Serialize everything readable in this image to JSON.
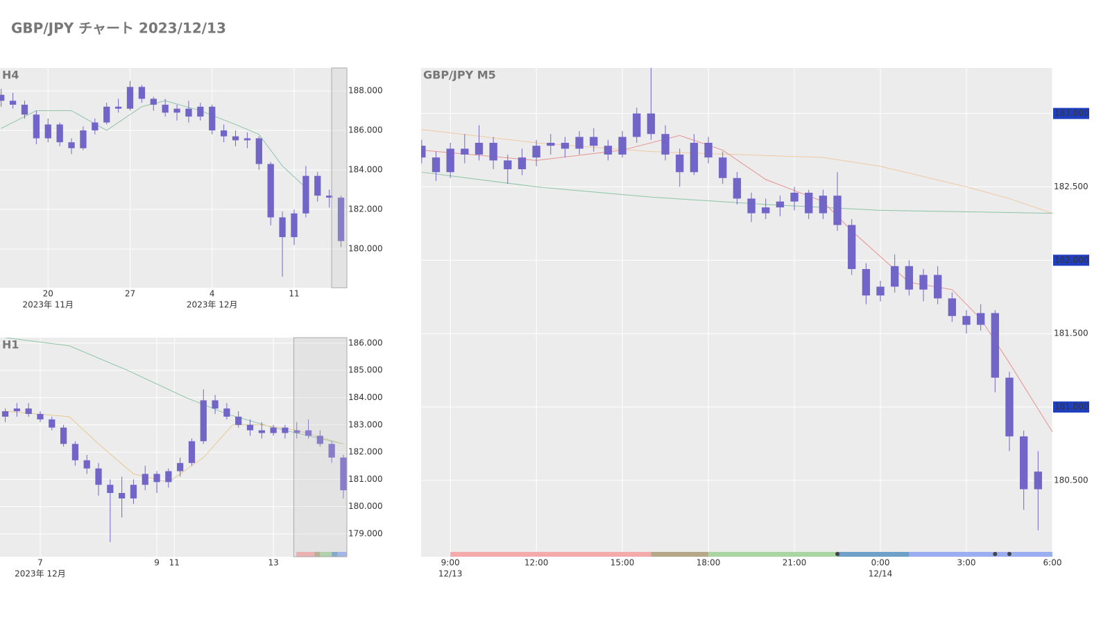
{
  "title": "GBP/JPY チャート 2023/12/13",
  "chart_data": [
    {
      "type": "candlestick",
      "title": "H4",
      "color": "#7265c8",
      "x": [
        16,
        17,
        18,
        19,
        20,
        21,
        22,
        23,
        24,
        25,
        26,
        27,
        28,
        29,
        30,
        31,
        32,
        33,
        34,
        35,
        36,
        37,
        38,
        39,
        40,
        41,
        42,
        43,
        44,
        45
      ],
      "open": [
        187.8,
        187.5,
        187.3,
        186.8,
        185.6,
        186.3,
        185.4,
        185.1,
        186.0,
        186.4,
        187.2,
        187.1,
        188.2,
        187.6,
        187.3,
        186.9,
        187.1,
        186.7,
        187.2,
        186.0,
        185.7,
        185.5,
        185.6,
        184.3,
        181.6,
        180.6,
        181.8,
        183.7,
        182.7,
        182.6
      ],
      "high": [
        188.1,
        187.9,
        187.5,
        187.0,
        186.6,
        186.4,
        185.6,
        186.2,
        186.6,
        187.4,
        187.6,
        188.5,
        188.3,
        187.7,
        187.6,
        187.3,
        187.5,
        187.4,
        187.3,
        186.3,
        186.0,
        185.9,
        185.7,
        184.4,
        181.9,
        182.0,
        184.2,
        183.9,
        183.0,
        182.7
      ],
      "low": [
        187.2,
        187.1,
        186.6,
        185.3,
        185.4,
        185.2,
        184.8,
        185.0,
        185.8,
        186.3,
        186.9,
        187.0,
        187.4,
        187.0,
        186.7,
        186.5,
        186.4,
        186.5,
        185.8,
        185.4,
        185.2,
        185.1,
        184.0,
        181.2,
        178.6,
        180.2,
        181.6,
        182.4,
        182.1,
        180.1
      ],
      "close": [
        187.5,
        187.3,
        186.8,
        185.6,
        186.3,
        185.4,
        185.1,
        186.0,
        186.4,
        187.2,
        187.1,
        188.2,
        187.6,
        187.3,
        186.9,
        187.1,
        186.7,
        187.2,
        186.0,
        185.7,
        185.5,
        185.6,
        184.3,
        181.6,
        180.6,
        181.8,
        183.7,
        182.7,
        182.6,
        180.4
      ],
      "ma": [
        {
          "color": "#8cc4a8",
          "x": [
            16,
            19,
            22,
            25,
            28,
            30,
            33,
            36,
            38,
            40,
            42
          ],
          "values": [
            186.1,
            187.0,
            187.0,
            186.0,
            187.2,
            187.5,
            187.0,
            186.3,
            185.8,
            184.2,
            183.1
          ]
        }
      ],
      "xlim": [
        15.9,
        45.5
      ],
      "ylim": [
        178.04,
        189.16
      ],
      "xticks": [
        20,
        27,
        {
          "value": 34,
          "label": "4"
        },
        {
          "value": 41,
          "label": "11"
        }
      ],
      "xticks2": [
        {
          "value": 20,
          "label": "2023年 11月"
        },
        {
          "value": 34,
          "label": "2023年 12月"
        }
      ],
      "yticks": [
        {
          "value": 180,
          "label": "180.000"
        },
        {
          "value": 182,
          "label": "182.000"
        },
        {
          "value": 184,
          "label": "184.000"
        },
        {
          "value": 186,
          "label": "186.000"
        },
        {
          "value": 188,
          "label": "188.000"
        }
      ],
      "highlight_range": [
        44.2,
        45.5
      ],
      "grid": true
    },
    {
      "type": "candlestick",
      "title": "H1",
      "color": "#7265c8",
      "x": [
        -0.6,
        -0.4,
        -0.2,
        0,
        0.2,
        0.4,
        0.6,
        0.8,
        1.0,
        1.2,
        1.4,
        1.6,
        1.8,
        2.0,
        2.2,
        2.4,
        2.6,
        2.8,
        3.0,
        3.2,
        3.4,
        3.6,
        3.8,
        4.0,
        4.2,
        4.4,
        4.6,
        4.8,
        5.0,
        5.2
      ],
      "open": [
        183.3,
        183.5,
        183.6,
        183.4,
        183.2,
        182.9,
        182.3,
        181.7,
        181.4,
        180.8,
        180.5,
        180.3,
        180.8,
        181.2,
        180.9,
        181.3,
        181.6,
        182.4,
        183.9,
        183.6,
        183.3,
        183.0,
        182.8,
        182.7,
        182.9,
        182.7,
        182.8,
        182.6,
        182.3,
        181.8
      ],
      "high": [
        183.6,
        183.8,
        183.8,
        183.5,
        183.3,
        183.0,
        182.4,
        181.9,
        181.6,
        181.0,
        181.1,
        181.0,
        181.5,
        181.3,
        181.4,
        181.8,
        182.5,
        184.3,
        184.1,
        183.8,
        183.5,
        183.2,
        183.1,
        183.0,
        183.0,
        183.1,
        183.2,
        182.8,
        182.4,
        181.9
      ],
      "low": [
        183.1,
        183.3,
        183.3,
        183.1,
        182.8,
        182.2,
        181.5,
        181.2,
        180.4,
        178.7,
        179.6,
        180.1,
        180.6,
        180.5,
        180.7,
        181.1,
        181.5,
        182.3,
        183.4,
        183.2,
        182.9,
        182.6,
        182.5,
        182.6,
        182.5,
        182.5,
        182.5,
        182.2,
        181.6,
        180.3
      ],
      "close": [
        183.5,
        183.6,
        183.4,
        183.2,
        182.9,
        182.3,
        181.7,
        181.4,
        180.8,
        180.5,
        180.3,
        180.8,
        181.2,
        180.9,
        181.3,
        181.6,
        182.4,
        183.9,
        183.6,
        183.3,
        183.0,
        182.8,
        182.7,
        182.9,
        182.7,
        182.8,
        182.6,
        182.3,
        181.8,
        180.6
      ],
      "ma": [
        {
          "color": "#8cc4a8",
          "x": [
            -0.6,
            0.5,
            1.5,
            2.5,
            3.2,
            4.0,
            5.2
          ],
          "values": [
            186.2,
            185.9,
            185.0,
            184.0,
            183.4,
            182.9,
            182.3
          ]
        },
        {
          "color": "#e8c890",
          "x": [
            -0.6,
            0.5,
            1.0,
            1.6,
            2.2,
            2.8,
            3.3,
            3.8,
            4.4,
            5.2
          ],
          "values": [
            183.5,
            183.3,
            182.3,
            181.2,
            180.9,
            181.8,
            183.0,
            183.0,
            182.8,
            182.3
          ]
        }
      ],
      "xlim": [
        -0.69,
        5.26
      ],
      "ylim": [
        178.16,
        186.2
      ],
      "xticks": [
        {
          "value": 0,
          "label": "7"
        },
        {
          "value": 2,
          "label": "9"
        },
        {
          "value": 2.3,
          "label": "11"
        },
        {
          "value": 4,
          "label": "13"
        }
      ],
      "xticks2": [
        {
          "value": 0,
          "label": "2023年 12月"
        }
      ],
      "yticks": [
        {
          "value": 179,
          "label": "179.000"
        },
        {
          "value": 180,
          "label": "180.000"
        },
        {
          "value": 181,
          "label": "181.000"
        },
        {
          "value": 182,
          "label": "182.000"
        },
        {
          "value": 183,
          "label": "183.000"
        },
        {
          "value": 184,
          "label": "184.000"
        },
        {
          "value": 185,
          "label": "185.000"
        },
        {
          "value": 186,
          "label": "186.000"
        }
      ],
      "highlight_range": [
        4.35,
        5.26
      ],
      "sessions": [
        {
          "start": 4.39,
          "end": 4.7,
          "color": "#f4aaaa"
        },
        {
          "start": 4.7,
          "end": 4.8,
          "color": "#b5a98a"
        },
        {
          "start": 4.8,
          "end": 5.0,
          "color": "#a8d5a2"
        },
        {
          "start": 5.0,
          "end": 5.1,
          "color": "#6fa0c8"
        },
        {
          "start": 5.1,
          "end": 5.26,
          "color": "#9aaef0"
        }
      ],
      "grid": true
    },
    {
      "type": "candlestick",
      "title": "GBP/JPY M5",
      "color": "#7265c8",
      "x": [
        8.0,
        8.5,
        9.0,
        9.5,
        10.0,
        10.5,
        11.0,
        11.5,
        12.0,
        12.5,
        13.0,
        13.5,
        14.0,
        14.5,
        15.0,
        15.5,
        16.0,
        16.5,
        17.0,
        17.5,
        18.0,
        18.5,
        19.0,
        19.5,
        20.0,
        20.5,
        21.0,
        21.5,
        22.0,
        22.5,
        23.0,
        23.5,
        24.0,
        24.5,
        25.0,
        25.5,
        26.0,
        26.5,
        27.0,
        27.5,
        28.0,
        28.5,
        29.0,
        29.5
      ],
      "open": [
        182.78,
        182.7,
        182.6,
        182.76,
        182.72,
        182.8,
        182.68,
        182.62,
        182.7,
        182.78,
        182.8,
        182.76,
        182.84,
        182.78,
        182.72,
        182.84,
        183.0,
        182.86,
        182.72,
        182.6,
        182.8,
        182.7,
        182.56,
        182.42,
        182.32,
        182.36,
        182.4,
        182.46,
        182.32,
        182.44,
        182.24,
        181.94,
        181.76,
        181.82,
        181.96,
        181.8,
        181.9,
        181.74,
        181.62,
        181.56,
        181.64,
        181.2,
        180.8,
        180.44
      ],
      "high": [
        182.82,
        182.74,
        182.8,
        182.86,
        182.92,
        182.84,
        182.72,
        182.76,
        182.82,
        182.86,
        182.84,
        182.88,
        182.9,
        182.82,
        182.88,
        183.04,
        183.32,
        182.92,
        182.76,
        182.86,
        182.84,
        182.74,
        182.6,
        182.46,
        182.42,
        182.44,
        182.5,
        182.48,
        182.48,
        182.6,
        182.28,
        181.98,
        181.86,
        182.04,
        182.0,
        181.94,
        181.96,
        181.78,
        181.66,
        181.7,
        181.66,
        181.24,
        180.84,
        180.7
      ],
      "low": [
        182.66,
        182.54,
        182.56,
        182.66,
        182.68,
        182.62,
        182.52,
        182.58,
        182.64,
        182.72,
        182.7,
        182.72,
        182.74,
        182.68,
        182.7,
        182.8,
        182.82,
        182.68,
        182.5,
        182.58,
        182.66,
        182.52,
        182.38,
        182.26,
        182.28,
        182.3,
        182.34,
        182.28,
        182.28,
        182.2,
        181.9,
        181.7,
        181.72,
        181.78,
        181.76,
        181.72,
        181.7,
        181.58,
        181.5,
        181.52,
        181.1,
        180.7,
        180.3,
        180.16
      ],
      "close": [
        182.7,
        182.6,
        182.76,
        182.72,
        182.8,
        182.68,
        182.62,
        182.7,
        182.78,
        182.8,
        182.76,
        182.84,
        182.78,
        182.72,
        182.84,
        183.0,
        182.86,
        182.72,
        182.6,
        182.8,
        182.7,
        182.56,
        182.42,
        182.32,
        182.36,
        182.4,
        182.46,
        182.32,
        182.44,
        182.24,
        181.94,
        181.76,
        181.82,
        181.96,
        181.8,
        181.9,
        181.74,
        181.62,
        181.56,
        181.64,
        181.2,
        180.8,
        180.44,
        180.56
      ],
      "ma": [
        {
          "color": "#f0c8a0",
          "x": [
            8,
            12,
            16,
            19,
            22,
            24,
            27,
            28.5,
            30
          ],
          "values": [
            182.89,
            182.8,
            182.74,
            182.72,
            182.7,
            182.64,
            182.5,
            182.42,
            182.32
          ]
        },
        {
          "color": "#8cc4a8",
          "x": [
            8,
            12,
            16,
            20,
            24,
            30
          ],
          "values": [
            182.6,
            182.5,
            182.43,
            182.38,
            182.34,
            182.32
          ]
        },
        {
          "color": "#e89090",
          "x": [
            8,
            12,
            15,
            17,
            18.5,
            20,
            22,
            23,
            25,
            26.5,
            27.5,
            28.5,
            30
          ],
          "values": [
            182.75,
            182.68,
            182.75,
            182.85,
            182.75,
            182.55,
            182.4,
            182.2,
            181.85,
            181.8,
            181.6,
            181.3,
            180.83
          ]
        }
      ],
      "xlim": [
        7.98,
        30
      ],
      "ylim": [
        179.98,
        183.31
      ],
      "xticks": [
        {
          "value": 9,
          "label": "9:00"
        },
        {
          "value": 12,
          "label": "12:00"
        },
        {
          "value": 15,
          "label": "15:00"
        },
        {
          "value": 18,
          "label": "18:00"
        },
        {
          "value": 21,
          "label": "21:00"
        },
        {
          "value": 24,
          "label": "0:00"
        },
        {
          "value": 27,
          "label": "3:00"
        },
        {
          "value": 30,
          "label": "6:00"
        }
      ],
      "xticks2": [
        {
          "value": 9,
          "label": "12/13"
        },
        {
          "value": 24,
          "label": "12/14"
        }
      ],
      "yticks": [
        {
          "value": 180.5,
          "label": "180.500"
        },
        {
          "value": 181.5,
          "label": "181.500"
        },
        {
          "value": 182.5,
          "label": "182.500"
        }
      ],
      "yticks_major": [
        {
          "value": 181,
          "label": "181.000"
        },
        {
          "value": 182,
          "label": "182.000"
        },
        {
          "value": 183,
          "label": "183.000"
        }
      ],
      "major_color": "#1f3fbf",
      "sessions": [
        {
          "start": 9.0,
          "end": 16.0,
          "color": "#f4aaaa"
        },
        {
          "start": 16.0,
          "end": 18.0,
          "color": "#b5a98a"
        },
        {
          "start": 18.0,
          "end": 22.5,
          "color": "#a8d5a2"
        },
        {
          "start": 22.5,
          "end": 25.0,
          "color": "#6fa0c8"
        },
        {
          "start": 25.0,
          "end": 30.0,
          "color": "#9aaef0"
        }
      ],
      "markers_x": [
        22.5,
        28.0,
        28.5
      ],
      "grid": true
    }
  ]
}
